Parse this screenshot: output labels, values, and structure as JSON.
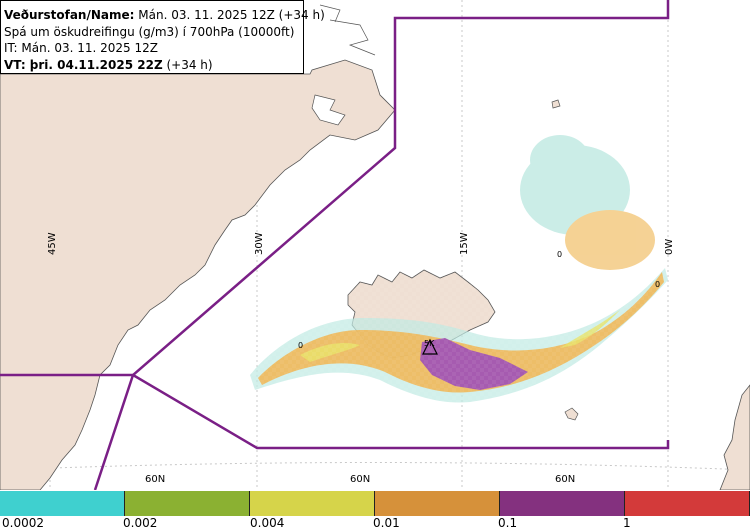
{
  "header": {
    "line1_bold": "Veðurstofan/Name:",
    "line1_rest": " Mán. 03. 11. 2025 12Z (+34 h)",
    "line2": "Spá um öskudreifingu (g/m3) í 700hPa (10000ft)",
    "line3": "IT: Mán. 03. 11. 2025 12Z",
    "line4_bold": "VT: þri. 04.11.2025 22Z",
    "line4_rest": " (+34 h)"
  },
  "map": {
    "longitude_labels": [
      "45W",
      "30W",
      "15W",
      "0W"
    ],
    "latitude_labels": [
      "60N",
      "60N",
      "60N"
    ],
    "zero_labels": [
      "0",
      "0",
      "0"
    ],
    "volcano_label": "5K",
    "colors": {
      "sea": "#ffffff",
      "land": "#efdfd3",
      "coast": "#555555",
      "boundary": "#7a1f86",
      "grid": "#c8c8c8"
    }
  },
  "legend": {
    "labels": [
      "0.0002",
      "0.002",
      "0.004",
      "0.01",
      "0.1",
      "1"
    ],
    "colors": [
      "#3fd0cf",
      "#8bb132",
      "#d6d44a",
      "#d6913a",
      "#84317f",
      "#d33a3a"
    ]
  }
}
